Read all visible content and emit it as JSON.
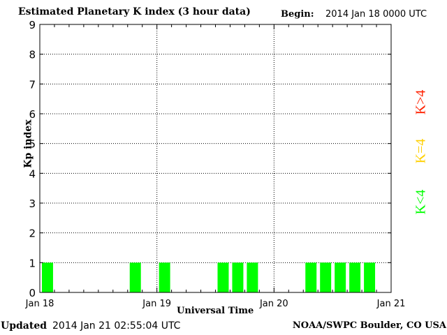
{
  "header": {
    "title": "Estimated Planetary K index (3 hour data)",
    "begin_label": "Begin:",
    "begin_value": "2014 Jan 18 0000 UTC"
  },
  "footer": {
    "updated_label": "Updated",
    "updated_value": "2014 Jan 21 02:55:04 UTC",
    "credit": "NOAA/SWPC Boulder, CO USA"
  },
  "legend": [
    {
      "label": "K>4",
      "color": "#ff2000"
    },
    {
      "label": "K=4",
      "color": "#ffd000"
    },
    {
      "label": "K<4",
      "color": "#00ff00"
    }
  ],
  "chart_data": {
    "type": "bar",
    "title": "Estimated Planetary K index (3 hour data)",
    "xlabel": "Universal Time",
    "ylabel": "Kp index",
    "ylim": [
      0,
      9
    ],
    "yticks": [
      "0",
      "1",
      "2",
      "3",
      "4",
      "5",
      "6",
      "7",
      "8",
      "9"
    ],
    "xticks": [
      "Jan 18",
      "Jan 19",
      "Jan 20",
      "Jan 21"
    ],
    "grid": true,
    "bar_color": "#00ff00",
    "x_unit": "3-hour interval index from 2014 Jan 18 0000 UTC",
    "values": [
      1,
      null,
      null,
      null,
      null,
      null,
      1,
      null,
      1,
      null,
      null,
      null,
      1,
      1,
      1,
      null,
      null,
      null,
      1,
      1,
      1,
      1,
      1,
      null
    ]
  }
}
